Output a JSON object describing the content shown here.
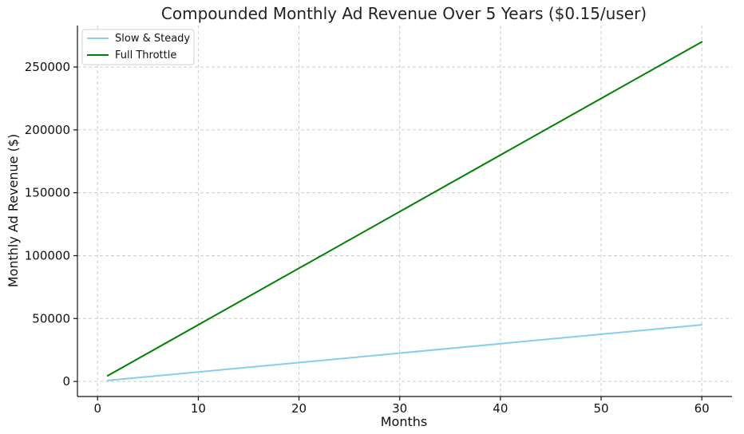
{
  "chart_data": {
    "type": "line",
    "title": "Compounded Monthly Ad Revenue Over 5 Years ($0.15/user)",
    "xlabel": "Months",
    "ylabel": "Monthly Ad Revenue ($)",
    "xlim": [
      -2,
      63
    ],
    "ylim": [
      -12000,
      283000
    ],
    "xticks": [
      0,
      10,
      20,
      30,
      40,
      50,
      60
    ],
    "yticks": [
      0,
      50000,
      100000,
      150000,
      200000,
      250000
    ],
    "grid": true,
    "legend_position": "top-left",
    "series": [
      {
        "name": "Slow & Steady",
        "color": "#87ceeb",
        "x": [
          1,
          60
        ],
        "y": [
          750,
          45000
        ]
      },
      {
        "name": "Full Throttle",
        "color": "#008000",
        "x": [
          1,
          60
        ],
        "y": [
          4500,
          270000
        ]
      }
    ]
  }
}
